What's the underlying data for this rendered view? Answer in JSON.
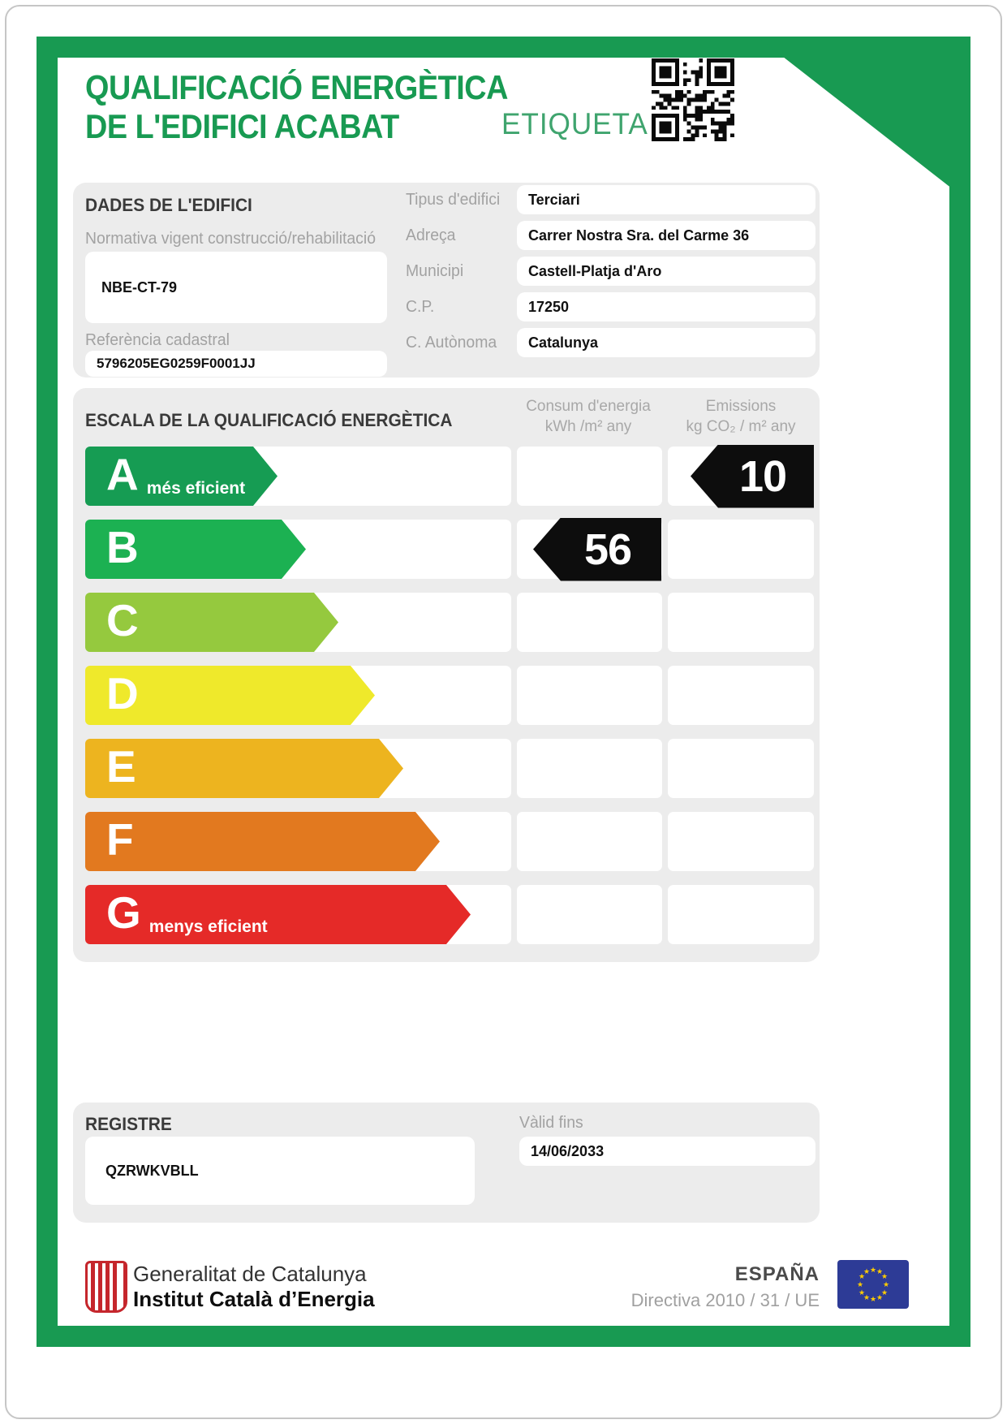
{
  "header": {
    "title_line1": "QUALIFICACIÓ ENERGÈTICA",
    "title_line2": "DE L'EDIFICI ACABAT",
    "etiqueta_label": "ETIQUETA"
  },
  "building_data": {
    "section_title": "DADES DE L'EDIFICI",
    "normativa_label": "Normativa vigent construcció/rehabilitació",
    "normativa_value": "NBE-CT-79",
    "cadastral_label": "Referència cadastral",
    "cadastral_value": "5796205EG0259F0001JJ",
    "fields": [
      {
        "label": "Tipus d'edifici",
        "value": "Terciari"
      },
      {
        "label": "Adreça",
        "value": "Carrer Nostra Sra. del Carme 36"
      },
      {
        "label": "Municipi",
        "value": "Castell-Platja d'Aro"
      },
      {
        "label": "C.P.",
        "value": "17250"
      },
      {
        "label": "C. Autònoma",
        "value": "Catalunya"
      }
    ]
  },
  "scale": {
    "section_title": "ESCALA DE LA QUALIFICACIÓ ENERGÈTICA",
    "consum_header_line1": "Consum d'energia",
    "consum_header_line2": "kWh /m²  any",
    "emissions_header_line1": "Emissions",
    "emissions_header_line2": "kg CO₂  / m²  any",
    "ratings": [
      {
        "letter": "A",
        "label": "més eficient",
        "color": "#169C53"
      },
      {
        "letter": "B",
        "label": "",
        "color": "#1CB152"
      },
      {
        "letter": "C",
        "label": "",
        "color": "#95C93E"
      },
      {
        "letter": "D",
        "label": "",
        "color": "#EFE92B"
      },
      {
        "letter": "E",
        "label": "",
        "color": "#EDB41F"
      },
      {
        "letter": "F",
        "label": "",
        "color": "#E2791F"
      },
      {
        "letter": "G",
        "label": "menys eficient",
        "color": "#E52A28"
      }
    ],
    "consum_value": "56",
    "consum_rating_letter": "B",
    "emissions_value": "10",
    "emissions_rating_letter": "A"
  },
  "registre": {
    "section_title": "REGISTRE",
    "registre_value": "QZRWKVBLL",
    "valid_label": "Vàlid fins",
    "valid_value": "14/06/2033"
  },
  "footer": {
    "org_line1": "Generalitat de Catalunya",
    "org_line2": "Institut Català d’Energia",
    "country": "ESPAÑA",
    "directive": "Directiva 2010 / 31 / UE"
  },
  "colors": {
    "frame_green": "#189A52",
    "etiqueta_green": "#3FA46E",
    "panel_gray": "#ECECEC",
    "value_arrow_black": "#0D0D0D",
    "eu_flag_blue": "#2D3B96",
    "eu_star_yellow": "#FFCC00",
    "senyera_red": "#C5262C"
  }
}
